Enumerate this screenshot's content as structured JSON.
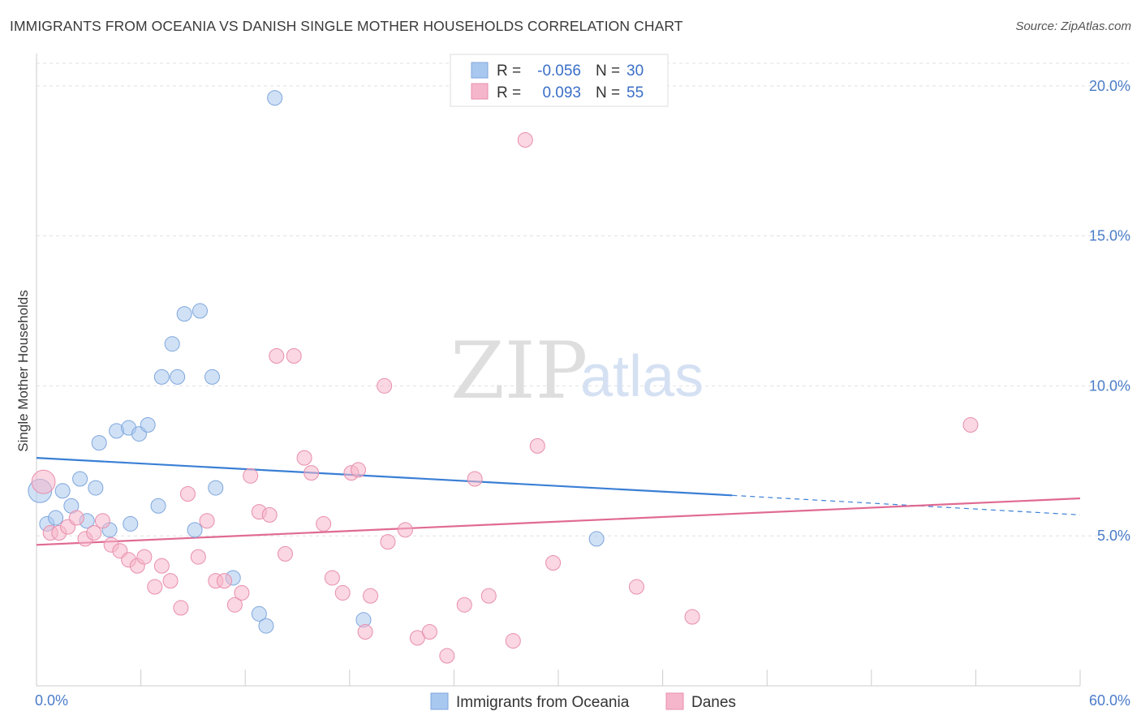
{
  "title": "IMMIGRANTS FROM OCEANIA VS DANISH SINGLE MOTHER HOUSEHOLDS CORRELATION CHART",
  "source": "Source: ZipAtlas.com",
  "watermark": {
    "zip": "ZIP",
    "atlas": "atlas"
  },
  "legend": {
    "rows": [
      {
        "r_label": "R =",
        "r_value": "-0.056",
        "n_label": "N =",
        "n_value": "30",
        "color": "#a9c8ef"
      },
      {
        "r_label": "R =",
        "r_value": "0.093",
        "n_label": "N =",
        "n_value": "55",
        "color": "#f5b6cb"
      }
    ]
  },
  "bottom_legend": [
    "Immigrants from Oceania",
    "Danes"
  ],
  "chart_data": {
    "type": "scatter",
    "title": "IMMIGRANTS FROM OCEANIA VS DANISH SINGLE MOTHER HOUSEHOLDS CORRELATION CHART",
    "xlabel": "",
    "ylabel": "Single Mother Households",
    "xlim": [
      0,
      60
    ],
    "ylim": [
      0,
      20.7
    ],
    "x_tick_labels": [
      "0.0%",
      "60.0%"
    ],
    "y_ticks": [
      5,
      10,
      15,
      20
    ],
    "y_tick_labels": [
      "5.0%",
      "10.0%",
      "15.0%",
      "20.0%"
    ],
    "grid": true,
    "legend_placement": "top-center",
    "series": [
      {
        "name": "Immigrants from Oceania",
        "color": "#a9c8ef",
        "stroke": "#7ea6dc",
        "trend_color": "#3a7fd5",
        "trend": {
          "x0": 0,
          "y0": 7.6,
          "x1": 40,
          "y1": 6.35,
          "dash_to_x": 60,
          "dash_to_y": 5.7
        },
        "points": [
          [
            0.2,
            6.5,
            1.6
          ],
          [
            0.6,
            5.4,
            1
          ],
          [
            1.1,
            5.6,
            1
          ],
          [
            1.5,
            6.5,
            1
          ],
          [
            2.0,
            6.0,
            1
          ],
          [
            2.5,
            6.9,
            1
          ],
          [
            2.9,
            5.5,
            1
          ],
          [
            3.4,
            6.6,
            1
          ],
          [
            3.6,
            8.1,
            1
          ],
          [
            4.2,
            5.2,
            1
          ],
          [
            4.6,
            8.5,
            1
          ],
          [
            5.3,
            8.6,
            1
          ],
          [
            5.4,
            5.4,
            1
          ],
          [
            5.9,
            8.4,
            1
          ],
          [
            6.4,
            8.7,
            1
          ],
          [
            7.0,
            6.0,
            1
          ],
          [
            7.2,
            10.3,
            1
          ],
          [
            7.8,
            11.4,
            1
          ],
          [
            8.1,
            10.3,
            1
          ],
          [
            8.5,
            12.4,
            1
          ],
          [
            9.1,
            5.2,
            1
          ],
          [
            9.4,
            12.5,
            1
          ],
          [
            10.1,
            10.3,
            1
          ],
          [
            10.3,
            6.6,
            1
          ],
          [
            11.3,
            3.6,
            1
          ],
          [
            12.8,
            2.4,
            1
          ],
          [
            13.2,
            2.0,
            1
          ],
          [
            13.7,
            19.6,
            1
          ],
          [
            18.8,
            2.2,
            1
          ],
          [
            32.2,
            4.9,
            1
          ]
        ]
      },
      {
        "name": "Danes",
        "color": "#f5b6cb",
        "stroke": "#e88eab",
        "trend_color": "#e06a93",
        "trend": {
          "x0": 0,
          "y0": 4.7,
          "x1": 60,
          "y1": 6.25
        },
        "points": [
          [
            0.4,
            6.8,
            1.6
          ],
          [
            0.8,
            5.1,
            1
          ],
          [
            1.3,
            5.1,
            1
          ],
          [
            1.8,
            5.3,
            1
          ],
          [
            2.3,
            5.6,
            1
          ],
          [
            2.8,
            4.9,
            1
          ],
          [
            3.3,
            5.1,
            1
          ],
          [
            3.8,
            5.5,
            1
          ],
          [
            4.3,
            4.7,
            1
          ],
          [
            4.8,
            4.5,
            1
          ],
          [
            5.3,
            4.2,
            1
          ],
          [
            5.8,
            4.0,
            1
          ],
          [
            6.2,
            4.3,
            1
          ],
          [
            6.8,
            3.3,
            1
          ],
          [
            7.2,
            4.0,
            1
          ],
          [
            7.7,
            3.5,
            1
          ],
          [
            8.3,
            2.6,
            1
          ],
          [
            8.7,
            6.4,
            1
          ],
          [
            9.3,
            4.3,
            1
          ],
          [
            9.8,
            5.5,
            1
          ],
          [
            10.3,
            3.5,
            1
          ],
          [
            10.8,
            3.5,
            1
          ],
          [
            11.4,
            2.7,
            1
          ],
          [
            11.8,
            3.1,
            1
          ],
          [
            12.3,
            7.0,
            1
          ],
          [
            12.8,
            5.8,
            1
          ],
          [
            13.4,
            5.7,
            1
          ],
          [
            13.8,
            11.0,
            1
          ],
          [
            14.3,
            4.4,
            1
          ],
          [
            14.8,
            11.0,
            1
          ],
          [
            15.4,
            7.6,
            1
          ],
          [
            15.8,
            7.1,
            1
          ],
          [
            16.5,
            5.4,
            1
          ],
          [
            17.0,
            3.6,
            1
          ],
          [
            17.6,
            3.1,
            1
          ],
          [
            18.1,
            7.1,
            1
          ],
          [
            18.5,
            7.2,
            1
          ],
          [
            18.9,
            1.8,
            1
          ],
          [
            19.2,
            3.0,
            1
          ],
          [
            20.0,
            10.0,
            1
          ],
          [
            20.2,
            4.8,
            1
          ],
          [
            21.2,
            5.2,
            1
          ],
          [
            21.9,
            1.6,
            1
          ],
          [
            22.6,
            1.8,
            1
          ],
          [
            23.6,
            1.0,
            1
          ],
          [
            24.6,
            2.7,
            1
          ],
          [
            25.2,
            6.9,
            1
          ],
          [
            26.0,
            3.0,
            1
          ],
          [
            27.4,
            1.5,
            1
          ],
          [
            28.1,
            18.2,
            1
          ],
          [
            28.8,
            8.0,
            1
          ],
          [
            29.7,
            4.1,
            1
          ],
          [
            34.5,
            3.3,
            1
          ],
          [
            37.7,
            2.3,
            1
          ],
          [
            53.7,
            8.7,
            1
          ]
        ]
      }
    ]
  }
}
